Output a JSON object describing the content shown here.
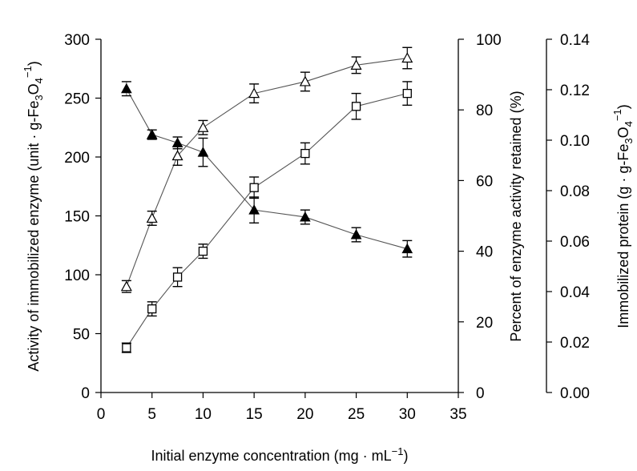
{
  "chart_data": {
    "type": "line",
    "x": [
      2.5,
      5,
      7.5,
      10,
      15,
      20,
      25,
      30
    ],
    "xlim": [
      0,
      35
    ],
    "xticks": [
      "0",
      "5",
      "10",
      "15",
      "20",
      "25",
      "30",
      "35"
    ],
    "xlabel_parts": [
      "Initial enzyme concentration (mg · mL",
      "−1",
      ")"
    ],
    "axes": {
      "left": {
        "ylim": [
          0,
          300
        ],
        "ticks": [
          "0",
          "50",
          "100",
          "150",
          "200",
          "250",
          "300"
        ],
        "label_parts": [
          "Activity of immobilized enzyme (unit · g-Fe",
          "3",
          "O",
          "4",
          "−1",
          ")"
        ]
      },
      "right1": {
        "ylim": [
          0,
          100
        ],
        "ticks": [
          "0",
          "20",
          "40",
          "60",
          "80",
          "100"
        ],
        "label": "Percent of enzyme activity retained (%)"
      },
      "right2": {
        "ylim": [
          0,
          0.14
        ],
        "ticks": [
          "0.00",
          "0.02",
          "0.04",
          "0.06",
          "0.08",
          "0.10",
          "0.12",
          "0.14"
        ],
        "label_parts": [
          "Immobilized protein (g · g-Fe",
          "3",
          "O",
          "4",
          "−1",
          ")"
        ]
      }
    },
    "series": [
      {
        "marker": "open-square",
        "axis": "left",
        "values": [
          38,
          71,
          98,
          120,
          174,
          203,
          243,
          254
        ],
        "errors": [
          4,
          6,
          8,
          6,
          9,
          9,
          11,
          10
        ]
      },
      {
        "marker": "open-triangle",
        "axis": "left",
        "values": [
          90,
          148,
          201,
          225,
          254,
          264,
          278,
          284
        ],
        "errors": [
          5,
          6,
          8,
          6,
          8,
          8,
          7,
          9
        ]
      },
      {
        "marker": "filled-triangle",
        "axis": "left",
        "values": [
          258,
          219,
          212,
          204,
          155,
          149,
          134,
          122
        ],
        "errors": [
          6,
          4,
          5,
          12,
          11,
          6,
          6,
          7
        ]
      }
    ]
  }
}
